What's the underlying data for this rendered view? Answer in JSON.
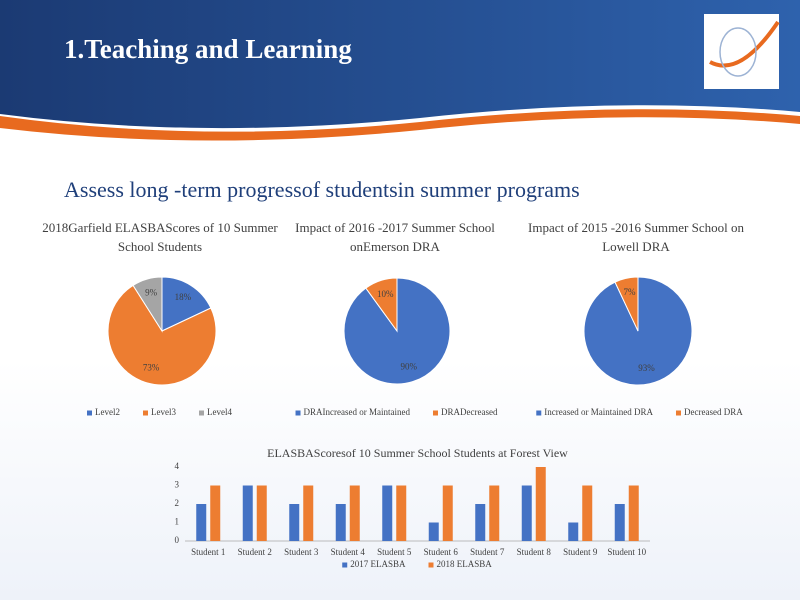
{
  "header": {
    "title": "1.Teaching and Learning"
  },
  "subtitle": "Assess long -term progressof studentsin summer programs",
  "chart_data": [
    {
      "type": "pie",
      "title": "2018Garfield ELASBAScores of 10 Summer School Students",
      "categories": [
        "Level2",
        "Level3",
        "Level4"
      ],
      "values": [
        18,
        73,
        9
      ],
      "value_labels": [
        "18%",
        "73%",
        "9%"
      ],
      "colors": [
        "#4472c4",
        "#ed7d31",
        "#a5a5a5"
      ]
    },
    {
      "type": "pie",
      "title": "Impact of 2016 -2017 Summer School onEmerson DRA",
      "categories": [
        "DRAIncreased or Maintained",
        "DRADecreased"
      ],
      "values": [
        90,
        10
      ],
      "value_labels": [
        "90%",
        "10%"
      ],
      "colors": [
        "#4472c4",
        "#ed7d31"
      ]
    },
    {
      "type": "pie",
      "title": "Impact of 2015 -2016 Summer School on Lowell DRA",
      "categories": [
        "Increased or Maintained DRA",
        "Decreased DRA"
      ],
      "values": [
        93,
        7
      ],
      "value_labels": [
        "93%",
        "7%"
      ],
      "colors": [
        "#4472c4",
        "#ed7d31"
      ]
    },
    {
      "type": "bar",
      "title": "ELASBAScoresof 10 Summer School Students at Forest View",
      "categories": [
        "Student 1",
        "Student 2",
        "Student 3",
        "Student 4",
        "Student 5",
        "Student 6",
        "Student 7",
        "Student 8",
        "Student 9",
        "Student 10"
      ],
      "series": [
        {
          "name": "2017 ELASBA",
          "color": "#4472c4",
          "values": [
            2,
            3,
            2,
            2,
            3,
            1,
            2,
            3,
            1,
            2
          ]
        },
        {
          "name": "2018 ELASBA",
          "color": "#ed7d31",
          "values": [
            3,
            3,
            3,
            3,
            3,
            3,
            3,
            4,
            3,
            3
          ]
        }
      ],
      "ylim": [
        0,
        4
      ],
      "yticks": [
        0,
        1,
        2,
        3,
        4
      ],
      "grid": false
    }
  ]
}
